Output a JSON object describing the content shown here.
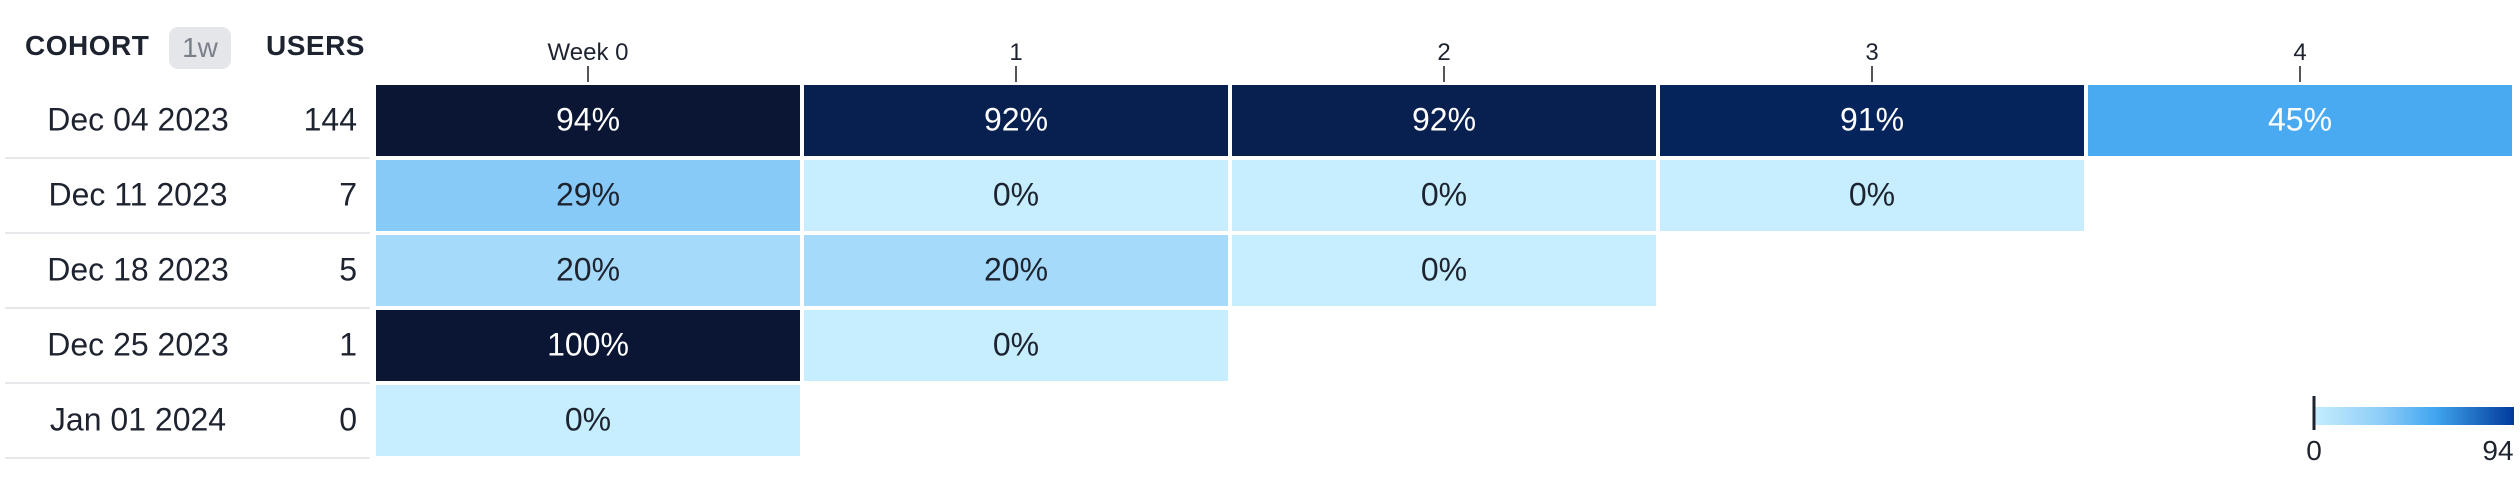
{
  "header": {
    "cohort_label": "COHORT",
    "granularity": "1w",
    "users_label": "USERS"
  },
  "chart_data": {
    "type": "heatmap",
    "x_labels": [
      "Week 0",
      "1",
      "2",
      "3",
      "4"
    ],
    "rows": [
      {
        "cohort": "Dec 04 2023",
        "users": "144",
        "values": [
          94,
          92,
          92,
          91,
          45
        ]
      },
      {
        "cohort": "Dec 11 2023",
        "users": "7",
        "values": [
          29,
          0,
          0,
          0
        ]
      },
      {
        "cohort": "Dec 18 2023",
        "users": "5",
        "values": [
          20,
          20,
          0
        ]
      },
      {
        "cohort": "Dec 25 2023",
        "users": "1",
        "values": [
          100,
          0
        ]
      },
      {
        "cohort": "Jan 01 2024",
        "users": "0",
        "values": [
          0
        ]
      }
    ],
    "value_suffix": "%",
    "legend": {
      "min_label": "0",
      "max_label": "94",
      "min": 0,
      "max": 94,
      "placement": "bottom-right"
    },
    "colors": {
      "scale": [
        "#c6eefe",
        "#a9dcfb",
        "#8bccf7",
        "#72bff5",
        "#43a7f0",
        "#003a9b",
        "#0a1633"
      ],
      "overflow": "#0a1633",
      "text_dark": "#1e2330",
      "text_light": "#ffffff",
      "row_rule": "#e6e8ec"
    }
  }
}
